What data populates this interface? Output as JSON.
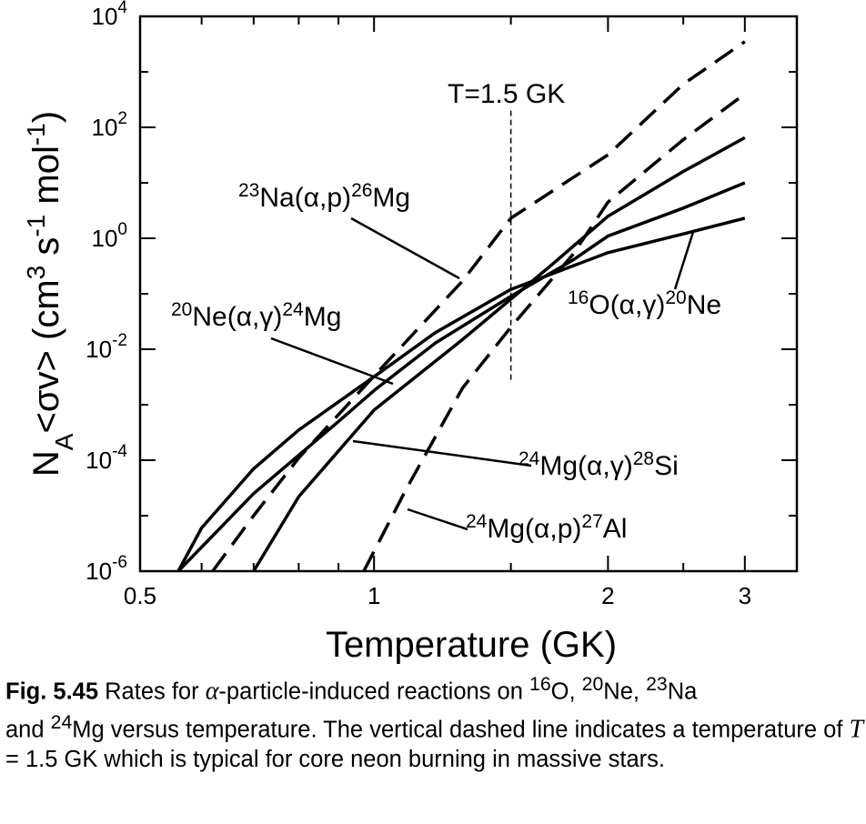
{
  "chart_data": {
    "type": "line",
    "xlabel": "Temperature  (GK)",
    "ylabel": "N_A<σv>  (cm^3 s^-1 mol^-1)",
    "ylabel_parts": {
      "n": "N",
      "n_sub": "A",
      "sv": "<σv>  (cm",
      "cm_exp": "3",
      "s": " s",
      "s_exp": "-1",
      "mol": " mol",
      "mol_exp": "-1",
      "close": ")"
    },
    "xscale": "log",
    "yscale": "log",
    "xlim": [
      0.5,
      3.5
    ],
    "ylim": [
      1e-06,
      10000.0
    ],
    "x_ticks": [
      {
        "v": 0.5,
        "label": "0.5"
      },
      {
        "v": 1,
        "label": "1"
      },
      {
        "v": 2,
        "label": "2"
      },
      {
        "v": 3,
        "label": "3"
      }
    ],
    "y_ticks": [
      {
        "v": 1e-06,
        "base": "10",
        "exp": "-6"
      },
      {
        "v": 0.0001,
        "base": "10",
        "exp": "-4"
      },
      {
        "v": 0.01,
        "base": "10",
        "exp": "-2"
      },
      {
        "v": 1,
        "base": "10",
        "exp": "0"
      },
      {
        "v": 100,
        "base": "10",
        "exp": "2"
      },
      {
        "v": 10000,
        "base": "10",
        "exp": "4"
      }
    ],
    "vline": {
      "x": 1.5,
      "y_range": [
        0.0025,
        200
      ],
      "label": "T=1.5 GK"
    },
    "series": [
      {
        "id": "ne20ag",
        "style": "solid",
        "label": {
          "a": "20",
          "b": "Ne(α,γ)",
          "c": "24",
          "d": "Mg"
        },
        "x": [
          0.56,
          0.6,
          0.7,
          0.8,
          1.0,
          1.2,
          1.5,
          2.0,
          2.5,
          3.0
        ],
        "y": [
          1e-06,
          6e-06,
          7e-05,
          0.00035,
          0.0032,
          0.02,
          0.12,
          0.55,
          1.2,
          2.3
        ]
      },
      {
        "id": "o16ag",
        "style": "solid",
        "label": {
          "a": "16",
          "b": "O(α,γ)",
          "c": "20",
          "d": "Ne"
        },
        "x": [
          0.56,
          0.7,
          0.9,
          1.0,
          1.2,
          1.5,
          1.8,
          2.0,
          2.5,
          3.0
        ],
        "y": [
          1e-06,
          2.5e-05,
          0.0005,
          0.0018,
          0.013,
          0.09,
          0.4,
          1.1,
          3.5,
          10
        ]
      },
      {
        "id": "mg24ag",
        "style": "solid",
        "label": {
          "a": "24",
          "b": "Mg(α,γ)",
          "c": "28",
          "d": "Si"
        },
        "x": [
          0.7,
          0.8,
          1.0,
          1.3,
          1.5,
          1.7,
          2.0,
          2.5,
          3.0
        ],
        "y": [
          1e-06,
          2.2e-05,
          0.0008,
          0.015,
          0.08,
          0.35,
          2.5,
          16,
          65
        ]
      },
      {
        "id": "na23ap",
        "style": "dashed",
        "label": {
          "a": "23",
          "b": "Na(α,p)",
          "c": "26",
          "d": "Mg"
        },
        "x": [
          0.62,
          0.7,
          0.8,
          1.0,
          1.3,
          1.5,
          2.0,
          2.5,
          3.0
        ],
        "y": [
          1e-06,
          1e-05,
          0.00011,
          0.0033,
          0.17,
          2.3,
          32,
          600,
          3500
        ]
      },
      {
        "id": "mg24ap",
        "style": "dashed",
        "label": {
          "a": "24",
          "b": "Mg(α,p)",
          "c": "27",
          "d": "Al"
        },
        "x": [
          0.97,
          1.1,
          1.3,
          1.5,
          1.8,
          2.0,
          2.5,
          3.0
        ],
        "y": [
          1e-06,
          3e-05,
          0.002,
          0.025,
          0.5,
          4.5,
          60,
          400
        ]
      }
    ]
  },
  "caption": {
    "label": "Fig. 5.45",
    "p1": "  Rates for ",
    "alpha": "α",
    "p2": "-particle-induced reactions on ",
    "s16": "16",
    "o": "O, ",
    "s20": "20",
    "ne": "Ne, ",
    "s23": "23",
    "na": "Na",
    "p3": "and ",
    "s24": "24",
    "p4": "Mg versus temperature. The vertical dashed line indicates a temperature of ",
    "t": "T",
    "p5": " = 1.5 GK which is typical for core neon burning in massive stars."
  }
}
